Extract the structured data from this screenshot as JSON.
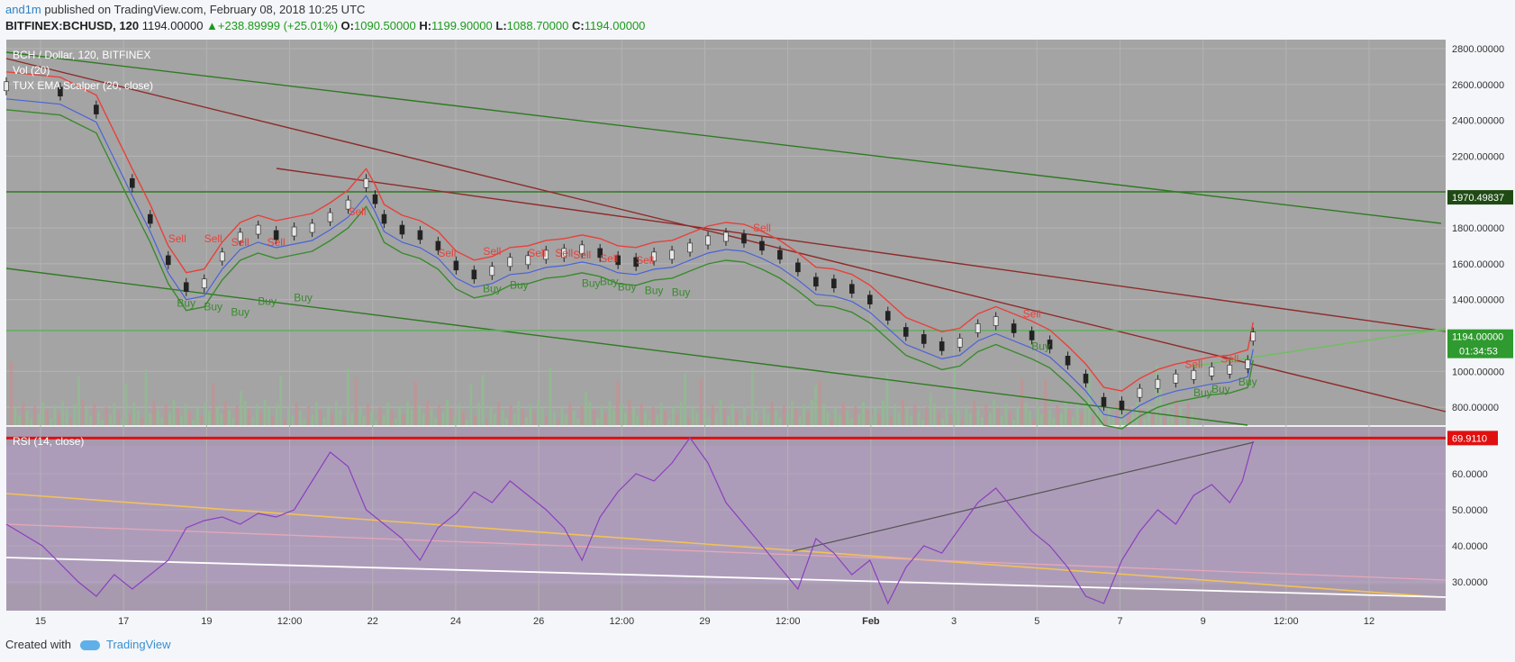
{
  "header": {
    "user": "and1m",
    "published": "published on TradingView.com, February 08, 2018 10:25 UTC",
    "symbol": "BITFINEX:BCHUSD, 120",
    "last": "1194.00000",
    "change": "+238.89999 (+25.01%)",
    "o_label": "O:",
    "o": "1090.50000",
    "h_label": "H:",
    "h": "1199.90000",
    "l_label": "L:",
    "l": "1088.70000",
    "c_label": "C:",
    "c": "1194.00000"
  },
  "legend": {
    "title": "BCH / Dollar, 120, BITFINEX",
    "vol": "Vol (20)",
    "ema": "TUX EMA Scalper (20, close)",
    "rsi": "RSI (14, close)"
  },
  "colors": {
    "price_bg": "#a4a4a4",
    "rsi_bg": "#a79aae",
    "sell": "#e8413a",
    "buy": "#3a8a2e",
    "ema": "#4a63d9",
    "rsi_line": "#8a3fc0",
    "channel": "#2f7a23",
    "resistance": "#8e2a2a"
  },
  "footer": {
    "created_with": "Created with",
    "brand": "TradingView"
  },
  "chart_data": [
    {
      "type": "line",
      "name": "BCH / Dollar, 120, BITFINEX",
      "x_ticks": [
        "15",
        "17",
        "19",
        "12:00",
        "22",
        "24",
        "26",
        "12:00",
        "29",
        "12:00",
        "Feb",
        "3",
        "5",
        "7",
        "9",
        "12:00",
        "12"
      ],
      "y_ticks": [
        "2800.00000",
        "2600.00000",
        "2400.00000",
        "2200.00000",
        "1800.00000",
        "1600.00000",
        "1400.00000",
        "1000.00000",
        "800.00000"
      ],
      "ylim": [
        700,
        2850
      ],
      "price_labels": {
        "level": "1970.49837",
        "last": "1194.00000",
        "countdown": "01:34:53"
      },
      "close_series": [
        [
          0,
          2590
        ],
        [
          3,
          2560
        ],
        [
          5,
          2460
        ],
        [
          7,
          2050
        ],
        [
          8,
          1850
        ],
        [
          9,
          1620
        ],
        [
          10,
          1470
        ],
        [
          11,
          1490
        ],
        [
          12,
          1640
        ],
        [
          13,
          1750
        ],
        [
          14,
          1790
        ],
        [
          15,
          1760
        ],
        [
          16,
          1780
        ],
        [
          17,
          1800
        ],
        [
          18,
          1860
        ],
        [
          19,
          1930
        ],
        [
          20,
          2050
        ],
        [
          20.5,
          1960
        ],
        [
          21,
          1850
        ],
        [
          22,
          1790
        ],
        [
          23,
          1760
        ],
        [
          24,
          1700
        ],
        [
          25,
          1590
        ],
        [
          26,
          1540
        ],
        [
          27,
          1560
        ],
        [
          28,
          1610
        ],
        [
          29,
          1620
        ],
        [
          30,
          1650
        ],
        [
          31,
          1660
        ],
        [
          32,
          1680
        ],
        [
          33,
          1660
        ],
        [
          34,
          1620
        ],
        [
          35,
          1610
        ],
        [
          36,
          1640
        ],
        [
          37,
          1650
        ],
        [
          38,
          1690
        ],
        [
          39,
          1730
        ],
        [
          40,
          1750
        ],
        [
          41,
          1740
        ],
        [
          42,
          1700
        ],
        [
          43,
          1650
        ],
        [
          44,
          1580
        ],
        [
          45,
          1500
        ],
        [
          46,
          1490
        ],
        [
          47,
          1460
        ],
        [
          48,
          1400
        ],
        [
          49,
          1310
        ],
        [
          50,
          1220
        ],
        [
          51,
          1180
        ],
        [
          52,
          1140
        ],
        [
          53,
          1160
        ],
        [
          54,
          1240
        ],
        [
          55,
          1280
        ],
        [
          56,
          1240
        ],
        [
          57,
          1200
        ],
        [
          58,
          1150
        ],
        [
          59,
          1060
        ],
        [
          60,
          960
        ],
        [
          61,
          830
        ],
        [
          62,
          810
        ],
        [
          63,
          880
        ],
        [
          64,
          930
        ],
        [
          65,
          960
        ],
        [
          66,
          980
        ],
        [
          67,
          1000
        ],
        [
          68,
          1010
        ],
        [
          69,
          1040
        ],
        [
          69.3,
          1194
        ]
      ],
      "signals": {
        "sell": [
          [
            9.5,
            1720
          ],
          [
            11.5,
            1720
          ],
          [
            13,
            1700
          ],
          [
            15,
            1700
          ],
          [
            19.5,
            1870
          ],
          [
            24.5,
            1640
          ],
          [
            27,
            1650
          ],
          [
            29.5,
            1640
          ],
          [
            31,
            1640
          ],
          [
            32,
            1630
          ],
          [
            33.5,
            1610
          ],
          [
            35.5,
            1600
          ],
          [
            42,
            1780
          ],
          [
            57,
            1300
          ],
          [
            66,
            1020
          ],
          [
            68,
            1050
          ]
        ],
        "buy": [
          [
            10,
            1360
          ],
          [
            11.5,
            1340
          ],
          [
            13,
            1310
          ],
          [
            14.5,
            1370
          ],
          [
            16.5,
            1390
          ],
          [
            27,
            1440
          ],
          [
            28.5,
            1460
          ],
          [
            32.5,
            1470
          ],
          [
            33.5,
            1480
          ],
          [
            34.5,
            1450
          ],
          [
            36,
            1430
          ],
          [
            37.5,
            1420
          ],
          [
            57.5,
            1120
          ],
          [
            66.5,
            860
          ],
          [
            67.5,
            880
          ],
          [
            69,
            920
          ]
        ]
      }
    },
    {
      "type": "line",
      "name": "RSI (14, close)",
      "y_ticks": [
        "60.0000",
        "50.0000",
        "40.0000",
        "30.0000"
      ],
      "ylim": [
        22,
        73
      ],
      "level": "69.9110",
      "values": [
        [
          0,
          46
        ],
        [
          2,
          40
        ],
        [
          4,
          30
        ],
        [
          5,
          26
        ],
        [
          6,
          32
        ],
        [
          7,
          28
        ],
        [
          8,
          32
        ],
        [
          9,
          36
        ],
        [
          10,
          45
        ],
        [
          11,
          47
        ],
        [
          12,
          48
        ],
        [
          13,
          46
        ],
        [
          14,
          49
        ],
        [
          15,
          48
        ],
        [
          16,
          50
        ],
        [
          17,
          58
        ],
        [
          18,
          66
        ],
        [
          19,
          62
        ],
        [
          20,
          50
        ],
        [
          21,
          46
        ],
        [
          22,
          42
        ],
        [
          23,
          36
        ],
        [
          24,
          45
        ],
        [
          25,
          49
        ],
        [
          26,
          55
        ],
        [
          27,
          52
        ],
        [
          28,
          58
        ],
        [
          29,
          54
        ],
        [
          30,
          50
        ],
        [
          31,
          45
        ],
        [
          32,
          36
        ],
        [
          33,
          48
        ],
        [
          34,
          55
        ],
        [
          35,
          60
        ],
        [
          36,
          58
        ],
        [
          37,
          63
        ],
        [
          38,
          70
        ],
        [
          39,
          63
        ],
        [
          40,
          52
        ],
        [
          41,
          46
        ],
        [
          42,
          40
        ],
        [
          43,
          34
        ],
        [
          44,
          28
        ],
        [
          45,
          42
        ],
        [
          46,
          38
        ],
        [
          47,
          32
        ],
        [
          48,
          36
        ],
        [
          49,
          24
        ],
        [
          50,
          34
        ],
        [
          51,
          40
        ],
        [
          52,
          38
        ],
        [
          53,
          45
        ],
        [
          54,
          52
        ],
        [
          55,
          56
        ],
        [
          56,
          50
        ],
        [
          57,
          44
        ],
        [
          58,
          40
        ],
        [
          59,
          34
        ],
        [
          60,
          26
        ],
        [
          61,
          24
        ],
        [
          62,
          36
        ],
        [
          63,
          44
        ],
        [
          64,
          50
        ],
        [
          65,
          46
        ],
        [
          66,
          54
        ],
        [
          67,
          57
        ],
        [
          68,
          52
        ],
        [
          68.7,
          58
        ],
        [
          69.3,
          69
        ]
      ]
    }
  ]
}
